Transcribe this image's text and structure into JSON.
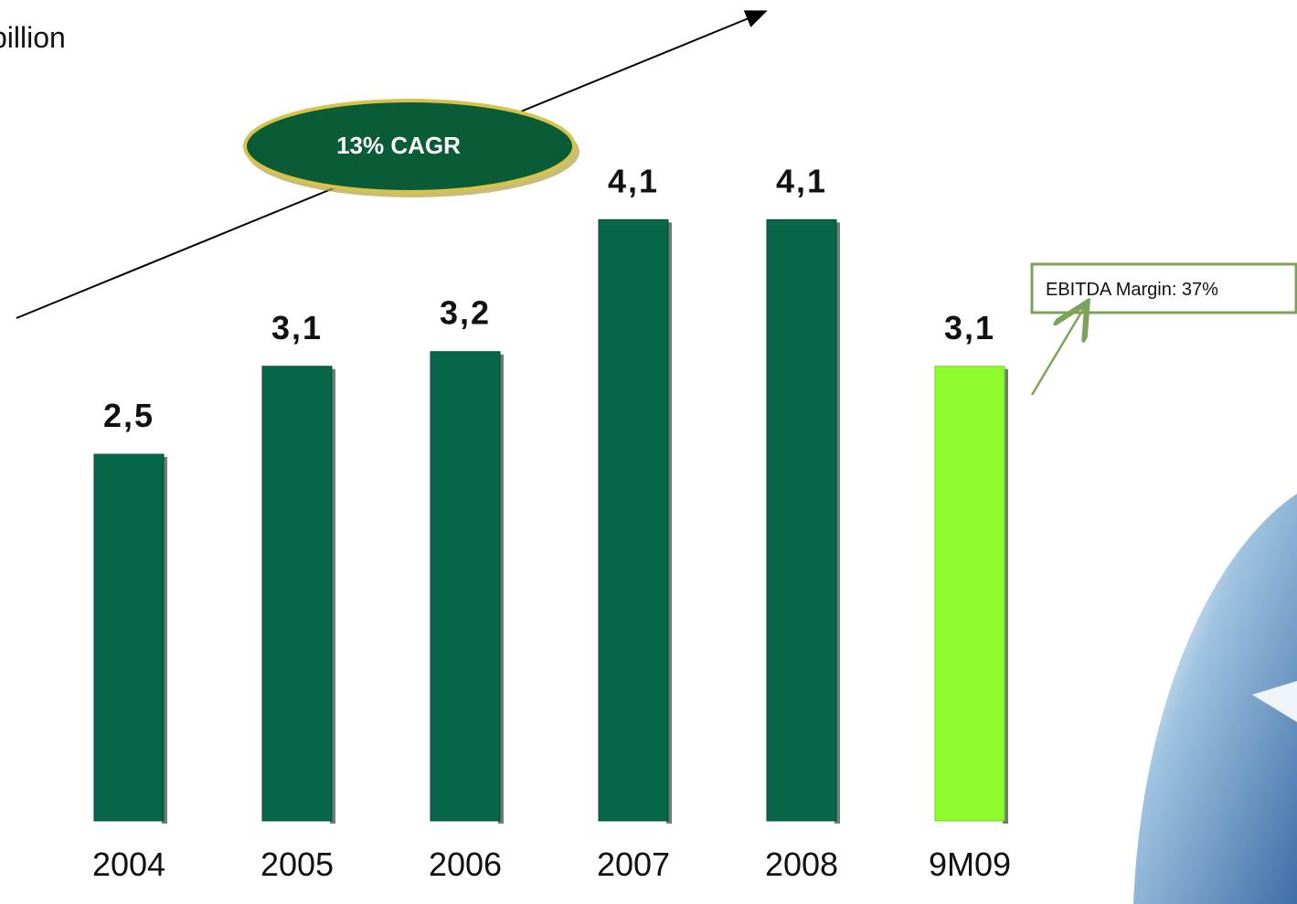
{
  "chart_data": {
    "type": "bar",
    "y_label": "billion",
    "annotations": [
      "13% CAGR",
      "EBITDA Margin: 37%"
    ],
    "categories": [
      "2004",
      "2005",
      "2006",
      "2007",
      "2008",
      "9M09"
    ],
    "values": [
      2.5,
      3.1,
      3.2,
      4.1,
      4.1,
      3.1
    ],
    "value_labels": [
      "2,5",
      "3,1",
      "3,2",
      "4,1",
      "4,1",
      "3,1"
    ],
    "colors": [
      "#07674a",
      "#07674a",
      "#07674a",
      "#07674a",
      "#07674a",
      "#8dfb2c"
    ]
  }
}
